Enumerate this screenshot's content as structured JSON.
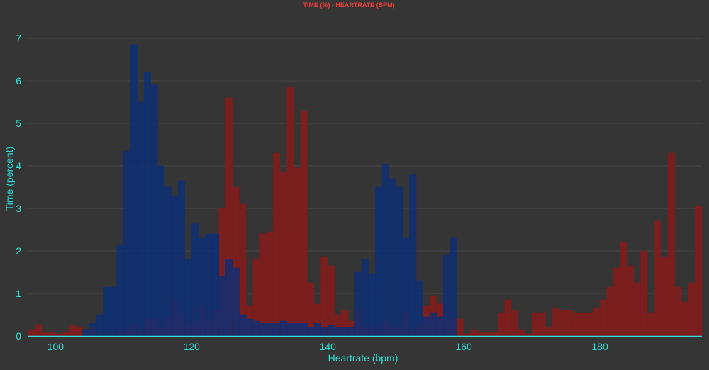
{
  "chart_data": {
    "type": "bar",
    "title": "TIME (%) - HEARTRATE (BPM)",
    "xlabel": "Heartrate (bpm)",
    "ylabel": "Time (percent)",
    "xlim": [
      96,
      195
    ],
    "ylim": [
      0,
      7.4
    ],
    "xticks": [
      "100",
      "120",
      "140",
      "160",
      "180"
    ],
    "yticks": [
      "0",
      "1",
      "2",
      "3",
      "4",
      "5",
      "6",
      "7"
    ],
    "grid": true,
    "bin_width": 1,
    "colors": {
      "background": "#353535",
      "accent": "#2fe0d8",
      "title": "#e8403c",
      "series_blue": "#0d2f78",
      "series_red": "#7a1e1e"
    },
    "series": [
      {
        "key": "blue",
        "x": [
          104,
          105,
          106,
          107,
          108,
          109,
          110,
          111,
          112,
          113,
          114,
          115,
          116,
          117,
          118,
          119,
          120,
          121,
          122,
          123,
          124,
          125,
          126,
          127,
          128,
          129,
          130,
          131,
          132,
          133,
          134,
          135,
          136,
          137,
          138,
          139,
          140,
          141,
          142,
          143,
          144,
          145,
          146,
          147,
          148,
          149,
          150,
          151,
          152,
          153,
          154,
          155,
          156,
          157,
          158
        ],
        "values": [
          0.15,
          0.3,
          0.5,
          1.15,
          1.15,
          2.15,
          4.35,
          6.85,
          5.5,
          6.2,
          5.9,
          4.0,
          3.5,
          3.3,
          3.65,
          1.8,
          2.65,
          2.3,
          2.4,
          2.4,
          1.4,
          1.8,
          1.6,
          0.5,
          0.4,
          0.35,
          0.3,
          0.3,
          0.3,
          0.35,
          0.3,
          0.3,
          0.3,
          0.2,
          0.3,
          0.2,
          0.25,
          0.2,
          0.2,
          0.2,
          1.5,
          1.8,
          1.45,
          3.5,
          4.05,
          3.7,
          3.5,
          2.3,
          3.8,
          1.3,
          0.45,
          0.55,
          0.45,
          1.9,
          2.3
        ]
      },
      {
        "key": "red",
        "x": [
          96,
          97,
          98,
          99,
          100,
          101,
          102,
          103,
          104,
          105,
          106,
          107,
          108,
          109,
          110,
          111,
          112,
          113,
          114,
          115,
          116,
          117,
          118,
          119,
          120,
          121,
          122,
          123,
          124,
          125,
          126,
          127,
          128,
          129,
          130,
          131,
          132,
          133,
          134,
          135,
          136,
          137,
          138,
          139,
          140,
          141,
          142,
          143,
          144,
          145,
          146,
          147,
          148,
          149,
          150,
          151,
          152,
          153,
          154,
          155,
          156,
          157,
          158,
          159,
          160,
          161,
          162,
          163,
          164,
          165,
          166,
          167,
          168,
          169,
          170,
          171,
          172,
          173,
          174,
          175,
          176,
          177,
          178,
          179,
          180,
          181,
          182,
          183,
          184,
          185,
          186,
          187,
          188,
          189,
          190,
          191,
          192,
          193,
          194
        ],
        "values": [
          0.15,
          0.27,
          0.08,
          0.08,
          0.05,
          0.1,
          0.25,
          0.2,
          0.05,
          0.2,
          0.05,
          0.05,
          0.05,
          0.15,
          0.15,
          0.27,
          0.15,
          0.4,
          0.4,
          0.2,
          0.4,
          0.85,
          0.5,
          0.28,
          0.28,
          0.7,
          0.4,
          0.6,
          3.0,
          5.6,
          3.5,
          3.1,
          0.7,
          1.8,
          2.4,
          2.45,
          4.3,
          3.85,
          5.85,
          3.95,
          5.3,
          1.25,
          0.75,
          1.85,
          1.65,
          0.5,
          0.6,
          0.35,
          0.58,
          0.2,
          0.2,
          0.12,
          0.35,
          0.2,
          0.2,
          0.55,
          0.15,
          0.25,
          0.7,
          0.95,
          0.75,
          0.35,
          0.45,
          0.4,
          0.05,
          0.15,
          0.08,
          0.08,
          0.08,
          0.55,
          0.85,
          0.6,
          0.15,
          0.05,
          0.55,
          0.55,
          0.2,
          0.65,
          0.6,
          0.6,
          0.55,
          0.55,
          0.55,
          0.65,
          0.85,
          1.15,
          1.6,
          2.2,
          1.65,
          1.25,
          2.0,
          0.55,
          2.7,
          1.85,
          4.3,
          1.15,
          0.8,
          1.25,
          3.05
        ]
      }
    ]
  }
}
